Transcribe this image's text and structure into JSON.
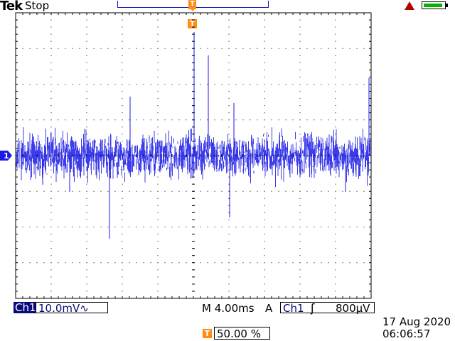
{
  "header": {
    "brand": "Tek",
    "run_status": "Stop",
    "trigger_marker_label": "T"
  },
  "channel": {
    "id_marker": "1",
    "name": "Ch1",
    "scale": "10.0mV",
    "coupling_symbol": "∿",
    "color": "#1a1ae6"
  },
  "timebase": {
    "label": "M 4.00ms"
  },
  "trigger": {
    "mode": "A",
    "source": "Ch1",
    "slope_symbol": "ʃ",
    "level": "800µV",
    "position_percent": "50.00 %",
    "color": "#ff8c14"
  },
  "datetime": {
    "date": "17 Aug 2020",
    "time": "06:06:57"
  },
  "icons": {
    "warning": "warning-triangle-icon",
    "battery": "battery-icon"
  }
}
